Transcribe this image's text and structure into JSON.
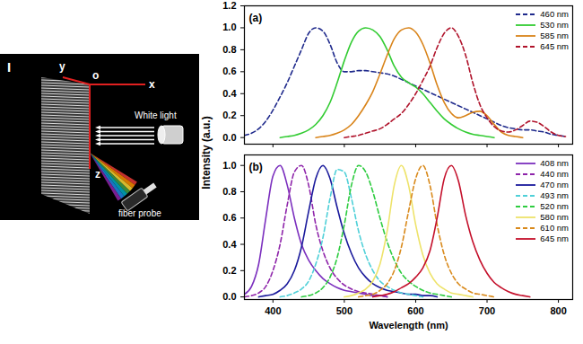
{
  "diagram": {
    "panel_label": "I",
    "axis_labels": {
      "origin": "o",
      "x": "x",
      "y": "y",
      "z": "z"
    },
    "source_label": "White light",
    "detector_label": "fiber probe"
  },
  "y_label": "Intensity (a.u.)",
  "chart_data": [
    {
      "type": "line",
      "title": "(a)",
      "tick_labels": "y",
      "legend": "upper right",
      "x": [
        360,
        370,
        380,
        390,
        400,
        410,
        420,
        430,
        440,
        450,
        460,
        470,
        480,
        490,
        500,
        510,
        520,
        530,
        540,
        550,
        560,
        570,
        580,
        590,
        600,
        610,
        620,
        630,
        640,
        650,
        660,
        670,
        680,
        690,
        700,
        710,
        720,
        730,
        740,
        750,
        760,
        770,
        780,
        790,
        800,
        810
      ],
      "xlim": [
        360,
        820
      ],
      "xticks": [
        400,
        500,
        600,
        700,
        800
      ],
      "ylim": [
        -0.06,
        1.2
      ],
      "yticks": [
        {
          "value": 0,
          "label": "0.0"
        },
        {
          "value": 0.2,
          "label": "0.2"
        },
        {
          "value": 0.4,
          "label": "0.4"
        },
        {
          "value": 0.6,
          "label": "0.6"
        },
        {
          "value": 0.8,
          "label": "0.8"
        },
        {
          "value": 1.0,
          "label": "1.0"
        },
        {
          "value": 1.2,
          "label": "1.2"
        }
      ],
      "series": [
        {
          "name": "460 nm",
          "color": "#1f2a8c",
          "line_style": "dashed",
          "values": [
            0.02,
            0.04,
            0.08,
            0.15,
            0.25,
            0.37,
            0.5,
            0.65,
            0.8,
            0.95,
            1.0,
            0.97,
            0.85,
            0.68,
            0.6,
            0.6,
            0.61,
            0.61,
            0.6,
            0.59,
            0.58,
            0.56,
            0.53,
            0.5,
            0.47,
            0.44,
            0.41,
            0.38,
            0.35,
            0.32,
            0.29,
            0.26,
            0.23,
            0.2,
            0.17,
            0.14,
            0.11,
            0.09,
            0.08,
            0.07,
            0.07,
            0.06,
            0.05,
            0.03,
            0.02,
            0.01
          ]
        },
        {
          "name": "530 nm",
          "color": "#33cc33",
          "line_style": "solid",
          "values": [
            null,
            null,
            null,
            null,
            null,
            0.0,
            0.01,
            0.02,
            0.04,
            0.07,
            0.12,
            0.2,
            0.32,
            0.5,
            0.7,
            0.87,
            0.97,
            1.0,
            0.98,
            0.92,
            0.8,
            0.65,
            0.55,
            0.5,
            0.46,
            0.4,
            0.32,
            0.24,
            0.17,
            0.12,
            0.08,
            0.05,
            0.03,
            0.02,
            0.01,
            0.0,
            null,
            null,
            null,
            null,
            null,
            null,
            null,
            null,
            null,
            null
          ]
        },
        {
          "name": "585 nm",
          "color": "#d9841a",
          "line_style": "solid",
          "values": [
            null,
            null,
            null,
            null,
            null,
            null,
            null,
            null,
            null,
            null,
            0.0,
            0.01,
            0.02,
            0.04,
            0.07,
            0.12,
            0.2,
            0.3,
            0.42,
            0.58,
            0.75,
            0.9,
            0.98,
            1.0,
            0.96,
            0.85,
            0.68,
            0.48,
            0.32,
            0.22,
            0.18,
            0.2,
            0.23,
            0.24,
            0.2,
            0.12,
            0.05,
            0.02,
            0.01,
            0.0,
            null,
            null,
            null,
            null,
            null,
            null
          ]
        },
        {
          "name": "645 nm",
          "color": "#b0132b",
          "line_style": "dashed",
          "values": [
            null,
            null,
            null,
            null,
            null,
            null,
            null,
            null,
            null,
            null,
            null,
            null,
            null,
            null,
            0.0,
            0.01,
            0.02,
            0.04,
            0.06,
            0.08,
            0.12,
            0.17,
            0.22,
            0.3,
            0.4,
            0.52,
            0.65,
            0.82,
            0.95,
            1.0,
            0.92,
            0.75,
            0.5,
            0.3,
            0.18,
            0.1,
            0.06,
            0.05,
            0.07,
            0.11,
            0.15,
            0.14,
            0.1,
            0.05,
            0.02,
            0.01
          ]
        }
      ]
    },
    {
      "type": "line",
      "title": "(b)",
      "x_label": "Wavelength (nm)",
      "legend": "upper right",
      "x": [
        360,
        370,
        380,
        390,
        400,
        410,
        420,
        430,
        440,
        450,
        460,
        470,
        480,
        490,
        500,
        510,
        520,
        530,
        540,
        550,
        560,
        570,
        580,
        590,
        600,
        610,
        620,
        630,
        640,
        650,
        660,
        670,
        680,
        690,
        700,
        710,
        720,
        730,
        740,
        750,
        760,
        770,
        780,
        790,
        800,
        810
      ],
      "xlim": [
        360,
        820
      ],
      "xticks": [
        400,
        500,
        600,
        700,
        800
      ],
      "ylim": [
        -0.02,
        1.08
      ],
      "yticks": [
        {
          "value": 0,
          "label": "0.0"
        },
        {
          "value": 0.2,
          "label": "0.2"
        },
        {
          "value": 0.4,
          "label": "0.4"
        },
        {
          "value": 0.6,
          "label": "0.6"
        },
        {
          "value": 0.8,
          "label": "0.8"
        },
        {
          "value": 1.0,
          "label": "1.0"
        }
      ],
      "series": [
        {
          "name": "408 nm",
          "color": "#7b2fbe",
          "line_style": "solid",
          "values": [
            0.02,
            0.08,
            0.25,
            0.6,
            0.92,
            1.0,
            0.85,
            0.6,
            0.4,
            0.28,
            0.2,
            0.14,
            0.1,
            0.07,
            0.05,
            0.04,
            0.03,
            0.02,
            0.01,
            0.01,
            0.0,
            null,
            null,
            null,
            null,
            null,
            null,
            null,
            null,
            null,
            null,
            null,
            null,
            null,
            null,
            null,
            null,
            null,
            null,
            null,
            null,
            null,
            null,
            null,
            null,
            null
          ]
        },
        {
          "name": "440 nm",
          "color": "#8e24aa",
          "line_style": "dashed",
          "values": [
            0.0,
            0.01,
            0.03,
            0.08,
            0.2,
            0.4,
            0.7,
            0.95,
            1.0,
            0.85,
            0.55,
            0.35,
            0.22,
            0.14,
            0.09,
            0.06,
            0.04,
            0.03,
            0.02,
            0.01,
            0.0,
            null,
            null,
            null,
            null,
            null,
            null,
            null,
            null,
            null,
            null,
            null,
            null,
            null,
            null,
            null,
            null,
            null,
            null,
            null,
            null,
            null,
            null,
            null,
            null,
            null
          ]
        },
        {
          "name": "470 nm",
          "color": "#1a1a9c",
          "line_style": "solid",
          "values": [
            null,
            null,
            0.0,
            0.01,
            0.02,
            0.05,
            0.1,
            0.2,
            0.38,
            0.65,
            0.9,
            1.0,
            0.9,
            0.68,
            0.48,
            0.33,
            0.22,
            0.15,
            0.1,
            0.07,
            0.05,
            0.04,
            0.03,
            0.02,
            0.02,
            0.01,
            0.01,
            0.0,
            null,
            null,
            null,
            null,
            null,
            null,
            null,
            null,
            null,
            null,
            null,
            null,
            null,
            null,
            null,
            null,
            null,
            null
          ]
        },
        {
          "name": "493 nm",
          "color": "#4fd0d8",
          "line_style": "dashed",
          "values": [
            null,
            null,
            null,
            null,
            null,
            0.0,
            0.01,
            0.03,
            0.06,
            0.12,
            0.25,
            0.45,
            0.75,
            0.97,
            0.95,
            0.75,
            0.5,
            0.32,
            0.2,
            0.12,
            0.08,
            0.05,
            0.03,
            0.02,
            0.01,
            0.0,
            null,
            null,
            null,
            null,
            null,
            null,
            null,
            null,
            null,
            null,
            null,
            null,
            null,
            null,
            null,
            null,
            null,
            null,
            null,
            null
          ]
        },
        {
          "name": "520 nm",
          "color": "#2ecc40",
          "line_style": "dashed",
          "values": [
            null,
            null,
            null,
            null,
            null,
            null,
            null,
            null,
            0.0,
            0.01,
            0.03,
            0.07,
            0.15,
            0.3,
            0.55,
            0.85,
            1.0,
            0.95,
            0.8,
            0.6,
            0.42,
            0.28,
            0.18,
            0.12,
            0.08,
            0.05,
            0.03,
            0.02,
            0.01,
            0.0,
            null,
            null,
            null,
            null,
            null,
            null,
            null,
            null,
            null,
            null,
            null,
            null,
            null,
            null,
            null,
            null
          ]
        },
        {
          "name": "580 nm",
          "color": "#eee36a",
          "line_style": "solid",
          "values": [
            null,
            null,
            null,
            null,
            null,
            null,
            null,
            null,
            null,
            null,
            null,
            null,
            null,
            null,
            0.0,
            0.01,
            0.03,
            0.06,
            0.12,
            0.25,
            0.5,
            0.85,
            1.0,
            0.85,
            0.55,
            0.32,
            0.18,
            0.1,
            0.06,
            0.03,
            0.02,
            0.01,
            0.0,
            null,
            null,
            null,
            null,
            null,
            null,
            null,
            null,
            null,
            null,
            null,
            null,
            null
          ]
        },
        {
          "name": "610 nm",
          "color": "#d98a1c",
          "line_style": "dashed",
          "values": [
            null,
            null,
            null,
            null,
            null,
            null,
            null,
            null,
            null,
            null,
            null,
            null,
            null,
            null,
            null,
            null,
            0.0,
            0.01,
            0.02,
            0.05,
            0.1,
            0.2,
            0.38,
            0.65,
            0.9,
            1.0,
            0.85,
            0.55,
            0.32,
            0.18,
            0.1,
            0.06,
            0.03,
            0.02,
            0.01,
            0.0,
            null,
            null,
            null,
            null,
            null,
            null,
            null,
            null,
            null,
            null
          ]
        },
        {
          "name": "645 nm",
          "color": "#c4102b",
          "line_style": "solid",
          "values": [
            null,
            null,
            null,
            null,
            null,
            null,
            null,
            null,
            null,
            null,
            null,
            null,
            null,
            null,
            null,
            null,
            null,
            null,
            0.0,
            0.01,
            0.02,
            0.04,
            0.07,
            0.1,
            0.15,
            0.22,
            0.35,
            0.6,
            0.9,
            1.0,
            0.88,
            0.62,
            0.42,
            0.28,
            0.18,
            0.11,
            0.07,
            0.04,
            0.02,
            0.01,
            0.0,
            null,
            null,
            null,
            null,
            null
          ]
        }
      ]
    }
  ]
}
